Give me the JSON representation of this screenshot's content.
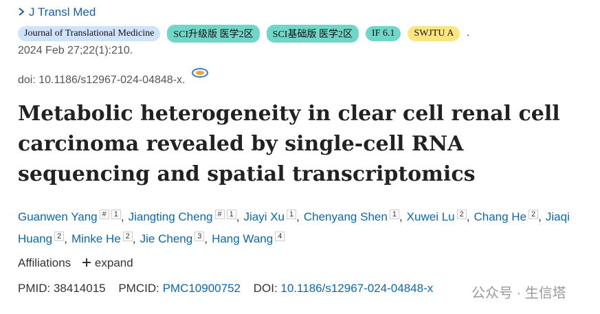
{
  "journal": "J Transl Med",
  "badges": [
    "Journal of Translational Medicine",
    "SCI升级版 医学2区",
    "SCI基础版 医学2区",
    "IF 6.1",
    "SWJTU A"
  ],
  "badge_suffix": ".",
  "citation": "2024 Feb 27;22(1):210.",
  "doi": "doi: 10.1186/s12967-024-04848-x.",
  "title": "Metabolic heterogeneity in clear cell renal cell carcinoma revealed by single-cell RNA sequencing and spatial transcriptomics",
  "authors": [
    {
      "name": "Guanwen Yang",
      "sup": [
        "#",
        "1"
      ],
      "sep": ","
    },
    {
      "name": "Jiangting Cheng",
      "sup": [
        "#",
        "1"
      ],
      "sep": ","
    },
    {
      "name": "Jiayi Xu",
      "sup": [
        "1"
      ],
      "sep": ","
    },
    {
      "name": "Chenyang Shen",
      "sup": [
        "1"
      ],
      "sep": ","
    },
    {
      "name": "Xuwei Lu",
      "sup": [
        "2"
      ],
      "sep": ","
    },
    {
      "name": "Chang He",
      "sup": [
        "2"
      ],
      "sep": ","
    },
    {
      "name": "Jiaqi Huang",
      "sup": [
        "2"
      ],
      "sep": ","
    },
    {
      "name": "Minke He",
      "sup": [
        "2"
      ],
      "sep": ","
    },
    {
      "name": "Jie Cheng",
      "sup": [
        "3"
      ],
      "sep": ","
    },
    {
      "name": "Hang Wang",
      "sup": [
        "4"
      ]
    }
  ],
  "affiliations": {
    "label": "Affiliations",
    "action": "expand"
  },
  "ids": {
    "pmid_label": "PMID:",
    "pmid": "38414015",
    "pmcid_label": "PMCID:",
    "pmcid": "PMC10900752",
    "doi_label": "DOI:",
    "doi": "10.1186/s12967-024-04848-x"
  },
  "watermark": "公众号 · 生信塔"
}
